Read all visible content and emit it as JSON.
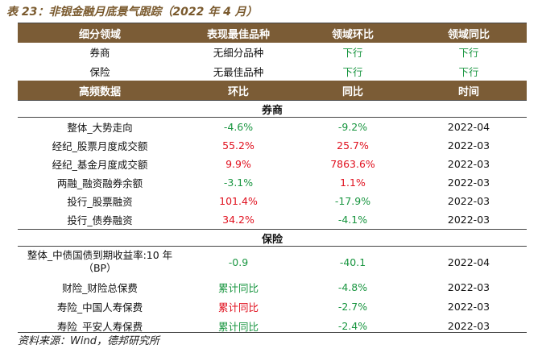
{
  "caption": "表 23：非银金融月底景气跟踪（2022 年 4 月）",
  "summary": {
    "headers": [
      "细分领域",
      "表现最佳品种",
      "领域环比",
      "领域同比"
    ],
    "rows": [
      {
        "segment": "券商",
        "best": "无细分品种",
        "mom": "下行",
        "yoy": "下行"
      },
      {
        "segment": "保险",
        "best": "无最佳品种",
        "mom": "下行",
        "yoy": "下行"
      }
    ]
  },
  "hf_headers": [
    "高频数据",
    "环比",
    "同比",
    "时间"
  ],
  "sections": [
    {
      "title": "券商",
      "rows": [
        {
          "name": "整体_大势走向",
          "mom": "-4.6%",
          "yoy": "-9.2%",
          "date": "2022-04"
        },
        {
          "name": "经纪_股票月度成交额",
          "mom": "55.2%",
          "yoy": "25.7%",
          "date": "2022-03"
        },
        {
          "name": "经纪_基金月度成交额",
          "mom": "9.9%",
          "yoy": "7863.6%",
          "date": "2022-03"
        },
        {
          "name": "两融_融资融券余额",
          "mom": "-3.1%",
          "yoy": "1.1%",
          "date": "2022-03"
        },
        {
          "name": "投行_股票融资",
          "mom": "101.4%",
          "yoy": "-17.9%",
          "date": "2022-03"
        },
        {
          "name": "投行_债券融资",
          "mom": "34.2%",
          "yoy": "-4.1%",
          "date": "2022-03"
        }
      ]
    },
    {
      "title": "保险",
      "rows": [
        {
          "name": "整体_中债国债到期收益率:10 年（BP）",
          "mom": "-0.9",
          "yoy": "-40.1",
          "date": "2022-04"
        },
        {
          "name": "财险_财险总保费",
          "mom": "累计同比",
          "yoy": "-4.8%",
          "date": "2022-03"
        },
        {
          "name": "寿险_中国人寿保费",
          "mom": "累计同比",
          "yoy": "-2.7%",
          "date": "2022-03"
        },
        {
          "name": "寿险_平安人寿保费",
          "mom": "累计同比",
          "yoy": "-2.4%",
          "date": "2022-03"
        }
      ]
    }
  ],
  "colors": {
    "header_bg": "#7b5c36",
    "positive": "#e0101e",
    "negative": "#1a9641",
    "text": "#111111"
  },
  "source": "资料来源：Wind，德邦研究所"
}
